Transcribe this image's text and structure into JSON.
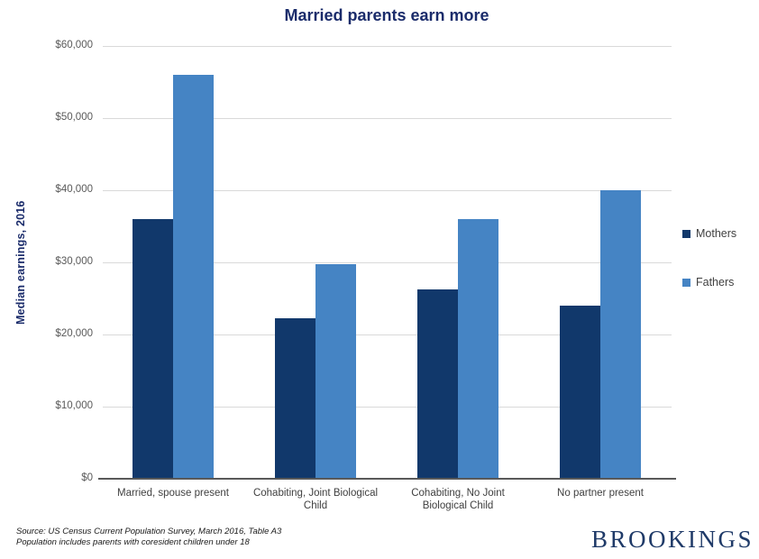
{
  "title": "Married parents earn more",
  "y_axis": {
    "label": "Median earnings, 2016",
    "tick_labels": [
      "$60,000",
      "$50,000",
      "$40,000",
      "$30,000",
      "$20,000",
      "$10,000",
      "$0"
    ],
    "max": 60000
  },
  "chart_data": {
    "type": "bar",
    "title": "Married parents earn more",
    "xlabel": "",
    "ylabel": "Median earnings, 2016",
    "ylim": [
      0,
      60000
    ],
    "grid": true,
    "legend_position": "right",
    "categories": [
      "Married, spouse present",
      "Cohabiting, Joint Biological Child",
      "Cohabiting, No Joint Biological Child",
      "No partner present"
    ],
    "series": [
      {
        "name": "Mothers",
        "color": "#11386b",
        "values": [
          36000,
          22300,
          26300,
          24000
        ]
      },
      {
        "name": "Fathers",
        "color": "#4584c4",
        "values": [
          56000,
          29700,
          36000,
          40000
        ]
      }
    ]
  },
  "colors": {
    "title_text": "#1b2c6b",
    "gridline": "#d9d9d9",
    "axis_line": "#595959",
    "tick_text": "#595959",
    "category_text": "#404040",
    "brand_text": "#1f3a68"
  },
  "footer": {
    "source_line1": "Source: US Census Current Population Survey, March 2016, Table A3",
    "source_line2": "Population includes parents with coresident children under 18",
    "brand": "BROOKINGS"
  }
}
